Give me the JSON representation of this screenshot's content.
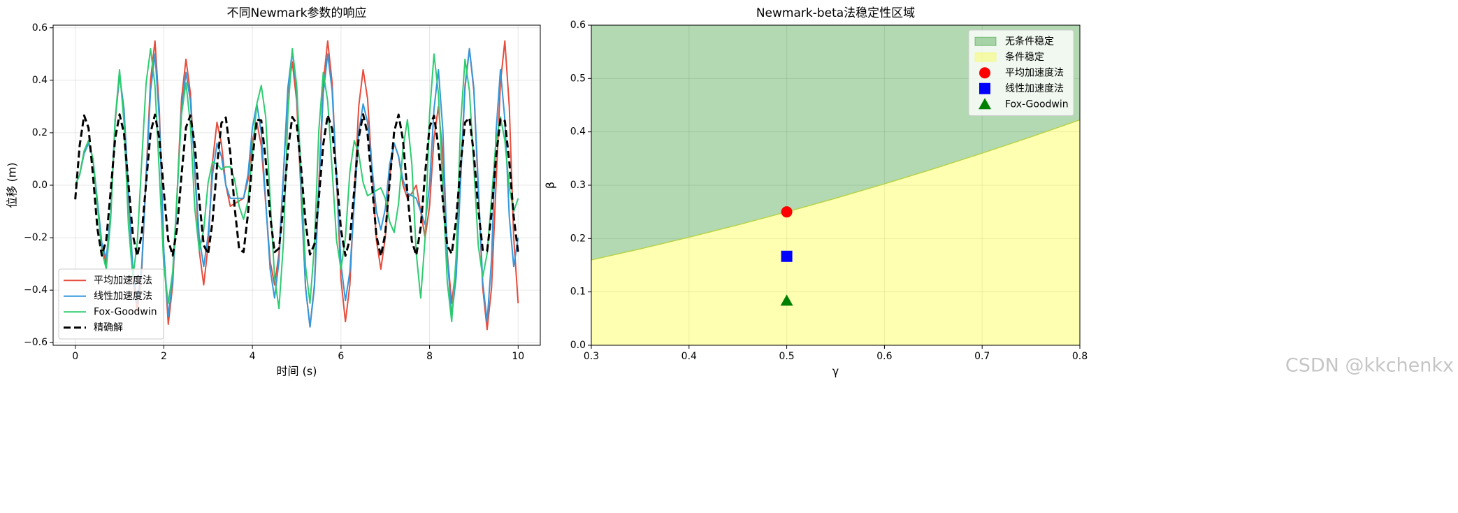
{
  "chart_data": [
    {
      "type": "line",
      "title": "不同Newmark参数的响应",
      "xlabel": "时间 (s)",
      "ylabel": "位移 (m)",
      "xlim": [
        -0.5,
        10.5
      ],
      "ylim": [
        -0.61,
        0.61
      ],
      "xticks": [
        0,
        2,
        4,
        6,
        8,
        10
      ],
      "yticks": [
        {
          "value": -0.6,
          "label": "−0.6"
        },
        {
          "value": -0.4,
          "label": "−0.4"
        },
        {
          "value": -0.2,
          "label": "−0.2"
        },
        {
          "value": 0,
          "label": "0.0"
        },
        0.2,
        0.4,
        0.6
      ],
      "grid": true,
      "legend": "lower left",
      "x": [
        0,
        0.1,
        0.2,
        0.3,
        0.4,
        0.5,
        0.6,
        0.7,
        0.8,
        0.9,
        1,
        1.1,
        1.2,
        1.3,
        1.4,
        1.5,
        1.6,
        1.7,
        1.8,
        1.9,
        2,
        2.1,
        2.2,
        2.3,
        2.4,
        2.5,
        2.6,
        2.7,
        2.8,
        2.9,
        3,
        3.1,
        3.2,
        3.3,
        3.4,
        3.5,
        3.6,
        3.7,
        3.8,
        3.9,
        4,
        4.1,
        4.2,
        4.3,
        4.4,
        4.5,
        4.6,
        4.7,
        4.8,
        4.9,
        5,
        5.1,
        5.2,
        5.3,
        5.4,
        5.5,
        5.6,
        5.7,
        5.8,
        5.9,
        6,
        6.1,
        6.2,
        6.3,
        6.4,
        6.5,
        6.6,
        6.7,
        6.8,
        6.9,
        7,
        7.1,
        7.2,
        7.3,
        7.4,
        7.5,
        7.6,
        7.7,
        7.8,
        7.9,
        8,
        8.1,
        8.2,
        8.3,
        8.4,
        8.5,
        8.6,
        8.7,
        8.8,
        8.9,
        9,
        9.1,
        9.2,
        9.3,
        9.4,
        9.5,
        9.6,
        9.7,
        9.8,
        9.9,
        10
      ],
      "series": [
        {
          "name": "平均加速度法",
          "color": "#e74c3c",
          "style": "solid",
          "values": [
            0,
            0.04,
            0.13,
            0.17,
            0.1,
            -0.07,
            -0.23,
            -0.3,
            -0.12,
            0.24,
            0.42,
            0.29,
            -0.03,
            -0.35,
            -0.48,
            -0.33,
            0.04,
            0.4,
            0.55,
            0.28,
            -0.26,
            -0.53,
            -0.38,
            -0.03,
            0.33,
            0.48,
            0.35,
            0.05,
            -0.25,
            -0.38,
            -0.23,
            0.09,
            0.24,
            0.16,
            0.0,
            -0.08,
            -0.07,
            -0.06,
            -0.05,
            0.02,
            0.17,
            0.24,
            0.15,
            -0.07,
            -0.29,
            -0.38,
            -0.26,
            0.04,
            0.35,
            0.47,
            0.32,
            -0.04,
            -0.39,
            -0.54,
            -0.38,
            0.01,
            0.39,
            0.55,
            0.39,
            0.02,
            -0.36,
            -0.52,
            -0.38,
            -0.04,
            0.3,
            0.44,
            0.33,
            0.06,
            -0.21,
            -0.32,
            -0.2,
            0.04,
            0.16,
            0.11,
            0.0,
            -0.05,
            -0.03,
            0.0,
            -0.1,
            -0.2,
            -0.08,
            0.18,
            0.3,
            0.11,
            -0.26,
            -0.45,
            -0.31,
            0.04,
            0.38,
            0.52,
            0.36,
            -0.02,
            -0.39,
            -0.55,
            -0.39,
            0.0,
            0.39,
            0.55,
            0.3,
            -0.2,
            -0.45
          ]
        },
        {
          "name": "线性加速度法",
          "color": "#3498db",
          "style": "solid",
          "values": [
            0,
            0.04,
            0.12,
            0.16,
            0.1,
            -0.06,
            -0.22,
            -0.28,
            -0.11,
            0.25,
            0.42,
            0.29,
            -0.02,
            -0.32,
            -0.45,
            -0.31,
            0.03,
            0.36,
            0.5,
            0.25,
            -0.25,
            -0.5,
            -0.36,
            -0.04,
            0.29,
            0.43,
            0.32,
            0.06,
            -0.2,
            -0.31,
            -0.19,
            0.04,
            0.16,
            0.11,
            0.0,
            -0.05,
            -0.05,
            -0.05,
            -0.05,
            0.04,
            0.22,
            0.31,
            0.2,
            -0.06,
            -0.32,
            -0.43,
            -0.29,
            0.04,
            0.37,
            0.51,
            0.36,
            -0.02,
            -0.39,
            -0.54,
            -0.39,
            -0.02,
            0.35,
            0.5,
            0.36,
            0.03,
            -0.3,
            -0.44,
            -0.33,
            -0.07,
            0.2,
            0.31,
            0.24,
            0.07,
            -0.1,
            -0.17,
            -0.09,
            0.08,
            0.16,
            0.11,
            0.02,
            -0.03,
            -0.04,
            -0.05,
            -0.1,
            -0.15,
            0.0,
            0.29,
            0.44,
            0.21,
            -0.27,
            -0.5,
            -0.35,
            0.01,
            0.37,
            0.52,
            0.37,
            0.0,
            -0.37,
            -0.52,
            -0.28,
            0.2,
            0.44,
            0.25,
            -0.12,
            -0.31,
            -0.2
          ]
        },
        {
          "name": "Fox-Goodwin",
          "color": "#2ecc71",
          "style": "solid",
          "values": [
            0,
            0.04,
            0.13,
            0.17,
            0.1,
            -0.08,
            -0.25,
            -0.32,
            -0.13,
            0.25,
            0.44,
            0.24,
            -0.15,
            -0.35,
            -0.22,
            0.09,
            0.39,
            0.52,
            0.38,
            0.04,
            -0.31,
            -0.45,
            -0.33,
            -0.03,
            0.27,
            0.39,
            0.23,
            -0.09,
            -0.25,
            -0.17,
            0.01,
            0.09,
            0.08,
            0.06,
            0.07,
            0.07,
            0.02,
            -0.08,
            -0.13,
            -0.06,
            0.13,
            0.31,
            0.38,
            0.26,
            -0.05,
            -0.35,
            -0.47,
            -0.22,
            0.27,
            0.52,
            0.38,
            0.04,
            -0.31,
            -0.45,
            -0.23,
            0.21,
            0.43,
            0.32,
            0.06,
            -0.21,
            -0.32,
            -0.2,
            0.05,
            0.17,
            0.12,
            0.01,
            -0.04,
            -0.03,
            -0.02,
            -0.01,
            -0.05,
            -0.14,
            -0.18,
            -0.07,
            0.14,
            0.25,
            0.08,
            -0.26,
            -0.43,
            -0.2,
            0.27,
            0.5,
            0.35,
            -0.01,
            -0.37,
            -0.52,
            -0.27,
            0.23,
            0.48,
            0.36,
            0.07,
            -0.23,
            -0.35,
            -0.26,
            -0.05,
            0.17,
            0.26,
            0.17,
            -0.01,
            -0.1,
            -0.05
          ]
        },
        {
          "name": "精确解",
          "color": "#000000",
          "style": "dashed",
          "values": [
            -0.054,
            0.152,
            0.266,
            0.218,
            0.038,
            -0.165,
            -0.268,
            -0.209,
            -0.022,
            0.177,
            0.27,
            0.198,
            0.007,
            -0.189,
            -0.27,
            -0.187,
            0.009,
            0.2,
            0.269,
            0.176,
            -0.025,
            -0.21,
            -0.268,
            -0.163,
            0.04,
            0.22,
            0.266,
            0.151,
            -0.056,
            -0.228,
            -0.262,
            -0.137,
            0.071,
            0.237,
            0.258,
            0.124,
            -0.086,
            -0.243,
            -0.255,
            -0.109,
            0.101,
            0.25,
            0.247,
            0.095,
            -0.115,
            -0.255,
            -0.241,
            -0.079,
            0.13,
            0.26,
            0.233,
            0.065,
            -0.143,
            -0.264,
            -0.225,
            -0.049,
            0.156,
            0.267,
            0.215,
            0.033,
            -0.169,
            -0.269,
            -0.206,
            -0.018,
            0.181,
            0.27,
            0.195,
            0.002,
            -0.193,
            -0.27,
            -0.184,
            0.014,
            0.203,
            0.269,
            0.172,
            -0.029,
            -0.213,
            -0.267,
            -0.16,
            0.045,
            0.222,
            0.265,
            0.146,
            -0.061,
            -0.231,
            -0.261,
            -0.133,
            0.076,
            0.239,
            0.257,
            0.119,
            -0.091,
            -0.246,
            -0.251,
            -0.105,
            0.106,
            0.252,
            0.245,
            0.09,
            -0.12,
            -0.257
          ]
        }
      ]
    },
    {
      "type": "area",
      "title": "Newmark-beta法稳定性区域",
      "xlabel": "γ",
      "ylabel": "β",
      "xlim": [
        0.3,
        0.8
      ],
      "ylim": [
        0,
        0.6
      ],
      "xticks": [
        0.3,
        0.4,
        0.5,
        0.6,
        0.7,
        0.8
      ],
      "yticks": [
        {
          "value": 0,
          "label": "0.0"
        },
        0.1,
        0.2,
        0.3,
        0.4,
        0.5,
        0.6
      ],
      "grid": true,
      "legend": "upper right",
      "boundary": {
        "color": "#b5d34a",
        "x": [
          0.3,
          0.35,
          0.4,
          0.45,
          0.5,
          0.55,
          0.6,
          0.65,
          0.7,
          0.75,
          0.8
        ],
        "values": [
          0.16,
          0.1806,
          0.2025,
          0.2256,
          0.25,
          0.2756,
          0.3025,
          0.3306,
          0.36,
          0.3906,
          0.4225
        ]
      },
      "regions": [
        {
          "name": "无条件稳定",
          "color": "#008000",
          "alpha": 0.3,
          "side": "above"
        },
        {
          "name": "条件稳定",
          "color": "#ffff00",
          "alpha": 0.3,
          "side": "below"
        }
      ],
      "points": [
        {
          "name": "平均加速度法",
          "color": "#ff0000",
          "marker": "circle",
          "x": 0.5,
          "y": 0.25
        },
        {
          "name": "线性加速度法",
          "color": "#0000ff",
          "marker": "square",
          "x": 0.5,
          "y": 0.1667
        },
        {
          "name": "Fox-Goodwin",
          "color": "#008000",
          "marker": "triangle",
          "x": 0.5,
          "y": 0.0833
        }
      ]
    }
  ],
  "watermark": "CSDN @kkchenkx"
}
